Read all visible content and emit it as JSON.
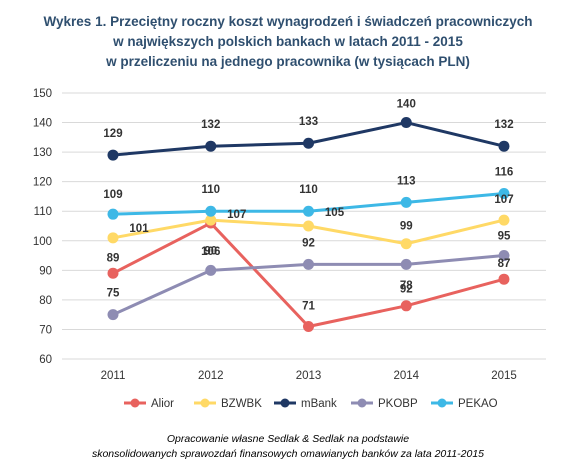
{
  "title_lines": [
    "Wykres 1. Przeciętny roczny koszt wynagrodzeń i świadczeń pracowniczych",
    "w największych polskich bankach w latach 2011 - 2015",
    "w przeliczeniu na jednego pracownika (w tysiącach PLN)"
  ],
  "source_lines": [
    "Opracowanie własne Sedlak & Sedlak na podstawie",
    "skonsolidowanych sprawozdań finansowych omawianych banków za lata 2011-2015"
  ],
  "chart_data": {
    "type": "line",
    "categories": [
      "2011",
      "2012",
      "2013",
      "2014",
      "2015"
    ],
    "ylim": [
      60,
      150
    ],
    "yticks": [
      60,
      70,
      80,
      90,
      100,
      110,
      120,
      130,
      140,
      150
    ],
    "grid": true,
    "legend": "bottom",
    "xlabel": "",
    "ylabel": "",
    "series": [
      {
        "name": "Alior",
        "color": "#e8625e",
        "values": [
          89,
          106,
          71,
          78,
          87
        ]
      },
      {
        "name": "BZWBK",
        "color": "#ffd966",
        "values": [
          101,
          107,
          105,
          99,
          107
        ]
      },
      {
        "name": "mBank",
        "color": "#1f3864",
        "values": [
          129,
          132,
          133,
          140,
          132
        ]
      },
      {
        "name": "PKOBP",
        "color": "#8e8cb3",
        "values": [
          75,
          90,
          92,
          92,
          95
        ]
      },
      {
        "name": "PEKAO",
        "color": "#3db8e6",
        "values": [
          109,
          110,
          110,
          113,
          116
        ]
      }
    ]
  }
}
